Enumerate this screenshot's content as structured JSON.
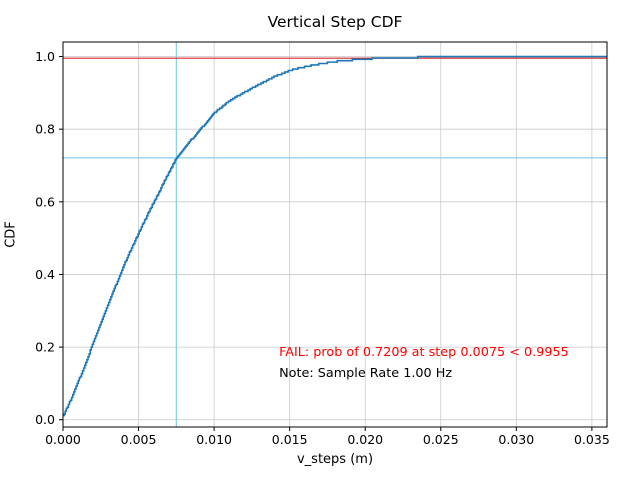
{
  "chart_data": {
    "type": "line",
    "title": "Vertical Step CDF",
    "xlabel": "v_steps (m)",
    "ylabel": "CDF",
    "xlim": [
      0.0,
      0.036
    ],
    "ylim": [
      -0.02,
      1.04
    ],
    "xticks": [
      0.0,
      0.005,
      0.01,
      0.015,
      0.02,
      0.025,
      0.03,
      0.035
    ],
    "xtick_labels": [
      "0.000",
      "0.005",
      "0.010",
      "0.015",
      "0.020",
      "0.025",
      "0.030",
      "0.035"
    ],
    "yticks": [
      0.0,
      0.2,
      0.4,
      0.6,
      0.8,
      1.0
    ],
    "ytick_labels": [
      "0.0",
      "0.2",
      "0.4",
      "0.6",
      "0.8",
      "1.0"
    ],
    "grid": true,
    "grid_color": "#c9c9c9",
    "series": [
      {
        "name": "vertical-step-cdf",
        "color": "#1f77b4",
        "style": "empirical-step",
        "x": [
          0,
          0.0005,
          0.001,
          0.0015,
          0.002,
          0.0025,
          0.003,
          0.0035,
          0.004,
          0.0045,
          0.005,
          0.0055,
          0.006,
          0.0065,
          0.007,
          0.0075,
          0.008,
          0.009,
          0.01,
          0.011,
          0.012,
          0.013,
          0.014,
          0.015,
          0.016,
          0.017,
          0.018,
          0.019,
          0.02,
          0.022,
          0.024,
          0.026,
          0.028,
          0.03,
          0.033,
          0.036
        ],
        "y": [
          0.01,
          0.055,
          0.105,
          0.158,
          0.212,
          0.266,
          0.32,
          0.372,
          0.423,
          0.47,
          0.515,
          0.558,
          0.6,
          0.64,
          0.682,
          0.7209,
          0.748,
          0.795,
          0.845,
          0.878,
          0.902,
          0.924,
          0.945,
          0.962,
          0.972,
          0.98,
          0.986,
          0.99,
          0.9935,
          0.997,
          0.9985,
          0.9993,
          0.9997,
          0.9999,
          1.0,
          1.0
        ]
      }
    ],
    "reference_lines": [
      {
        "name": "fail-threshold-line",
        "orientation": "horizontal",
        "value": 0.9955,
        "color": "#d62728"
      },
      {
        "name": "achieved-prob-line",
        "orientation": "horizontal",
        "value": 0.7209,
        "color": "#87ceeb"
      },
      {
        "name": "step-marker-line",
        "orientation": "vertical",
        "value": 0.0075,
        "color": "#87ceeb"
      }
    ],
    "annotations": [
      {
        "name": "fail-annotation",
        "text": "FAIL: prob of 0.7209 at step 0.0075 < 0.9955",
        "x": 0.0143,
        "y": 0.175,
        "color": "#ff0000"
      },
      {
        "name": "note-annotation",
        "text": "Note: Sample Rate 1.00 Hz",
        "x": 0.0143,
        "y": 0.118,
        "color": "#000000"
      }
    ]
  }
}
